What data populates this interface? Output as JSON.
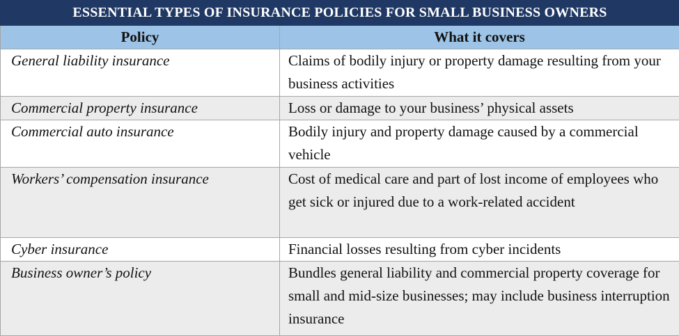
{
  "table": {
    "title": "ESSENTIAL TYPES OF INSURANCE POLICIES FOR SMALL BUSINESS OWNERS",
    "header": [
      "Policy",
      "What it covers"
    ],
    "rows": [
      [
        "General liability insurance",
        "Claims of bodily injury or property damage resulting from your business activities"
      ],
      [
        "Commercial property insurance",
        "Loss or damage to your business’ physical assets"
      ],
      [
        "Commercial auto insurance",
        "Bodily injury and property damage caused by a commercial vehicle"
      ],
      [
        "Workers’ compensation insurance",
        "Cost of medical care and part of lost income of employees who get sick or injured due to a work-related accident"
      ],
      [
        "Cyber insurance",
        "Financial losses resulting from cyber incidents"
      ],
      [
        "Business owner’s policy",
        "Bundles general liability and commercial property coverage for small and mid-size businesses; may include business interruption insurance"
      ]
    ]
  }
}
